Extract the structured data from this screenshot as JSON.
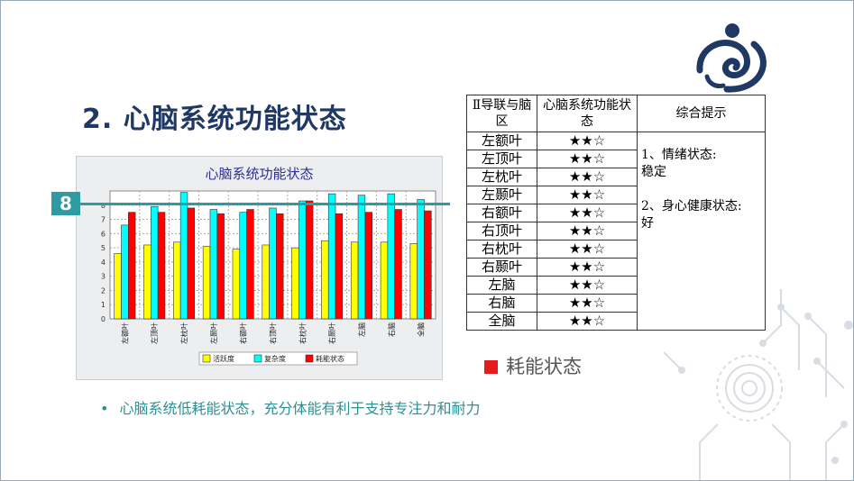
{
  "slide": {
    "title": "2. 心脑系统功能状态",
    "badge": "8",
    "highlight_legend": "耗能状态",
    "bullet": "心脑系统低耗能状态，充分体能有利于支持专注力和耐力"
  },
  "colors": {
    "title": "#1f3864",
    "accent": "#2e9aa2",
    "yellow": "#ffff00",
    "cyan": "#00ffff",
    "red": "#ff0000"
  },
  "table": {
    "headers": [
      "Ⅱ导联与脑区",
      "心脑系统功能状态",
      "综合提示"
    ],
    "rows": [
      {
        "region": "左额叶",
        "stars": "★★☆"
      },
      {
        "region": "左顶叶",
        "stars": "★★☆"
      },
      {
        "region": "左枕叶",
        "stars": "★★☆"
      },
      {
        "region": "左颞叶",
        "stars": "★★☆"
      },
      {
        "region": "右额叶",
        "stars": "★★☆"
      },
      {
        "region": "右顶叶",
        "stars": "★★☆"
      },
      {
        "region": "右枕叶",
        "stars": "★★☆"
      },
      {
        "region": "右颞叶",
        "stars": "★★☆"
      },
      {
        "region": "左脑",
        "stars": "★★☆"
      },
      {
        "region": "右脑",
        "stars": "★★☆"
      },
      {
        "region": "全脑",
        "stars": "★★☆"
      }
    ],
    "note_line1": "1、情绪状态:",
    "note_line2": "稳定",
    "note_line3": "2、身心健康状态:",
    "note_line4": "好"
  },
  "chart_data": {
    "type": "bar",
    "title": "心脑系统功能状态",
    "categories": [
      "左额叶",
      "左顶叶",
      "左枕叶",
      "左颞叶",
      "右额叶",
      "右顶叶",
      "右枕叶",
      "右颞叶",
      "左脑",
      "右脑",
      "全脑"
    ],
    "series": [
      {
        "name": "活跃度",
        "color": "#ffff00",
        "values": [
          4.6,
          5.2,
          5.4,
          5.1,
          4.9,
          5.2,
          5.0,
          5.5,
          5.4,
          5.4,
          5.3
        ]
      },
      {
        "name": "复杂度",
        "color": "#00ffff",
        "values": [
          6.6,
          7.9,
          8.9,
          7.7,
          7.5,
          7.8,
          8.3,
          8.8,
          8.7,
          8.8,
          8.4
        ]
      },
      {
        "name": "耗能状态",
        "color": "#ff0000",
        "values": [
          7.5,
          7.5,
          7.8,
          7.4,
          7.7,
          7.4,
          8.3,
          7.4,
          7.5,
          7.7,
          7.6
        ]
      }
    ],
    "yticks": [
      "0",
      "1",
      "2",
      "3",
      "4",
      "5",
      "6",
      "7",
      "8"
    ],
    "ylim": [
      0,
      9
    ],
    "grid": true,
    "legend_position": "bottom"
  }
}
